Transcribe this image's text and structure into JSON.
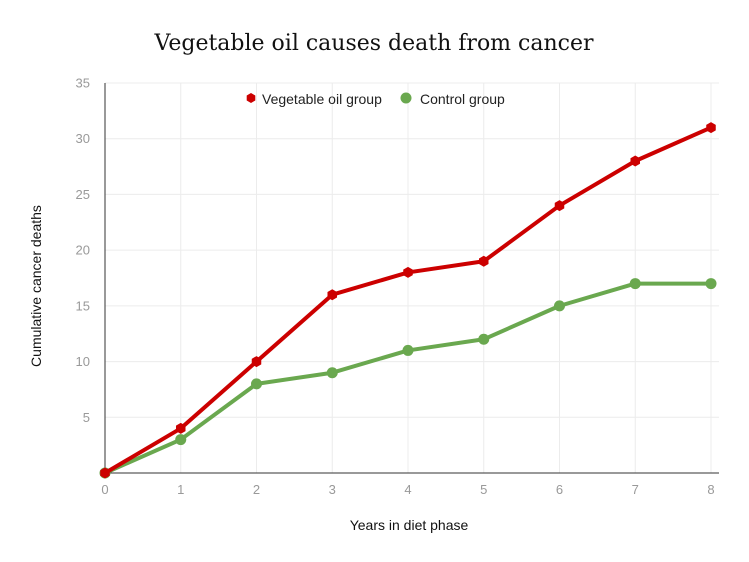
{
  "chart_data": {
    "type": "line",
    "title": "Vegetable oil causes death from cancer",
    "xlabel": "Years in diet phase",
    "ylabel": "Cumulative cancer deaths",
    "x": [
      0,
      1,
      2,
      3,
      4,
      5,
      6,
      7,
      8
    ],
    "xlim": [
      0,
      8
    ],
    "ylim": [
      0,
      35
    ],
    "x_ticks": [
      "0",
      "1",
      "2",
      "3",
      "4",
      "5",
      "6",
      "7",
      "8"
    ],
    "y_ticks": [
      "5",
      "10",
      "15",
      "20",
      "25",
      "30",
      "35"
    ],
    "grid": true,
    "legend_position": "top",
    "series": [
      {
        "name": "Vegetable oil group",
        "color": "#cc0000",
        "marker": "hexagon",
        "values": [
          0,
          4,
          10,
          16,
          18,
          19,
          24,
          28,
          31
        ]
      },
      {
        "name": "Control group",
        "color": "#6aa84f",
        "marker": "circle",
        "values": [
          0,
          3,
          8,
          9,
          11,
          12,
          15,
          17,
          17
        ]
      }
    ]
  }
}
